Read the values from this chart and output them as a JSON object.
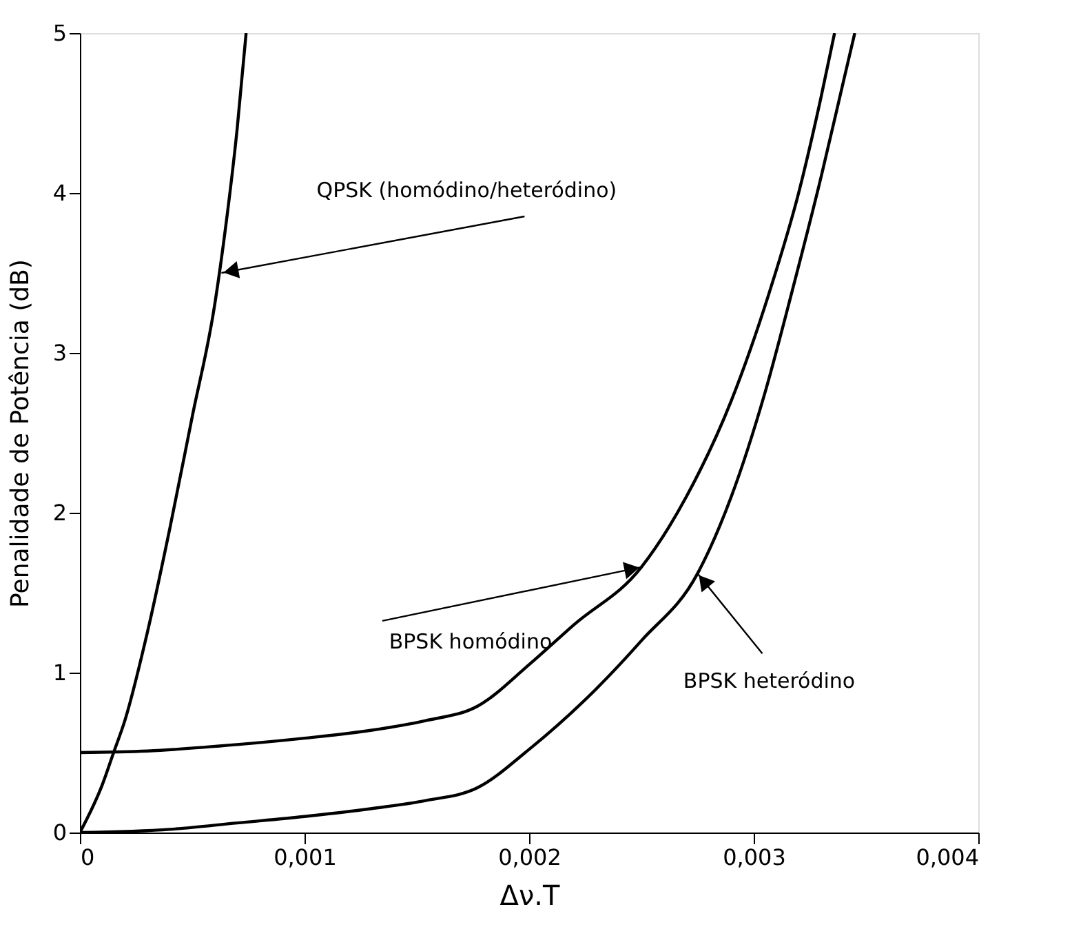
{
  "chart_data": {
    "type": "line",
    "xlabel": "Δν.T",
    "ylabel": "Penalidade de Potência (dB)",
    "xlim": [
      0,
      0.004
    ],
    "ylim": [
      0,
      5
    ],
    "xticks": [
      0,
      {
        "value": 0.001,
        "label": "0,001"
      },
      {
        "value": 0.002,
        "label": "0,002"
      },
      {
        "value": 0.003,
        "label": "0,003"
      },
      {
        "value": 0.004,
        "label": "0,004"
      }
    ],
    "yticks": [
      0,
      1,
      2,
      3,
      4,
      5
    ],
    "grid": false,
    "legend": false,
    "marker": "none",
    "line_style": "solid",
    "series": [
      {
        "color": "#000000",
        "x": [
          0,
          0.0001,
          0.00015,
          0.0002,
          0.0003,
          0.0004,
          0.0005,
          0.0006,
          0.00065,
          0.0007,
          0.00074
        ],
        "values": [
          0,
          0.3,
          0.5,
          0.7,
          1.25,
          1.9,
          2.6,
          3.3,
          3.8,
          4.4,
          5
        ]
      },
      {
        "color": "#000000",
        "x": [
          0,
          0.0003,
          0.0007,
          0.001,
          0.0013,
          0.00154,
          0.00177,
          0.002,
          0.0022,
          0.0025,
          0.0027,
          0.0029,
          0.00307,
          0.0032,
          0.0033,
          0.00336
        ],
        "values": [
          0.5,
          0.51,
          0.55,
          0.59,
          0.64,
          0.7,
          0.79,
          1.05,
          1.3,
          1.66,
          2.1,
          2.7,
          3.38,
          4.0,
          4.6,
          5
        ]
      },
      {
        "color": "#000000",
        "x": [
          0,
          0.0004,
          0.0007,
          0.001,
          0.0013,
          0.00154,
          0.00177,
          0.002,
          0.0023,
          0.0025,
          0.00275,
          0.0029,
          0.00305,
          0.00317,
          0.0033,
          0.0034,
          0.00345
        ],
        "values": [
          0,
          0.02,
          0.06,
          0.1,
          0.15,
          0.2,
          0.28,
          0.52,
          0.9,
          1.2,
          1.62,
          2.1,
          2.75,
          3.38,
          4.1,
          4.7,
          5
        ]
      }
    ],
    "annotations": [
      {
        "text": "QPSK (homódino/heteródino)",
        "x": 0.00063,
        "y": 3.5
      },
      {
        "text": "BPSK homódino",
        "x": 0.0025,
        "y": 1.66
      },
      {
        "text": "BPSK heteródino",
        "x": 0.00275,
        "y": 1.62
      }
    ]
  }
}
